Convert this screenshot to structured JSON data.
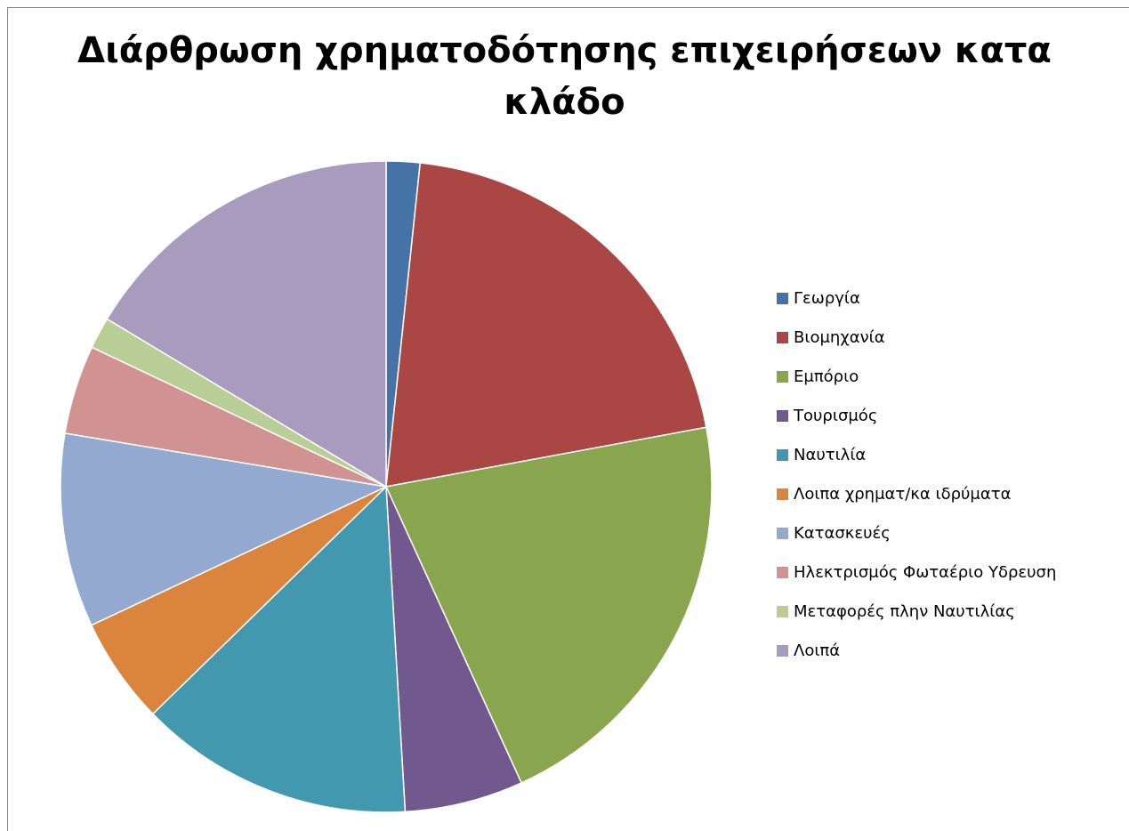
{
  "chart_data": {
    "type": "pie",
    "title": "Διάρθρωση χρηματοδότησης επιχειρήσεων κατα κλάδο",
    "title_lines": [
      "Διάρθρωση χρηματοδότησης επιχειρήσεων κατα",
      "κλάδο"
    ],
    "legend_position": "right",
    "start_angle_deg": 0,
    "direction": "clockwise",
    "categories": [
      "Γεωργία",
      "Βιομηχανία",
      "Εμπόριο",
      "Τουρισμός",
      "Ναυτιλία",
      "Λοιπα χρηματ/κα ιδρύματα",
      "Κατασκευές",
      "Ηλεκτρισμός Φωταέριο Υδρευση",
      "Μεταφορές πλην Ναυτιλίας",
      "Λοιπά"
    ],
    "values": [
      1.7,
      20.8,
      21.5,
      6.0,
      13.9,
      5.4,
      9.8,
      4.5,
      1.6,
      16.7
    ],
    "colors": [
      "#4572A7",
      "#AA4643",
      "#89A54E",
      "#71588F",
      "#4198AF",
      "#DB843D",
      "#93A9CF",
      "#D19392",
      "#B9CD96",
      "#A99BBD"
    ]
  }
}
